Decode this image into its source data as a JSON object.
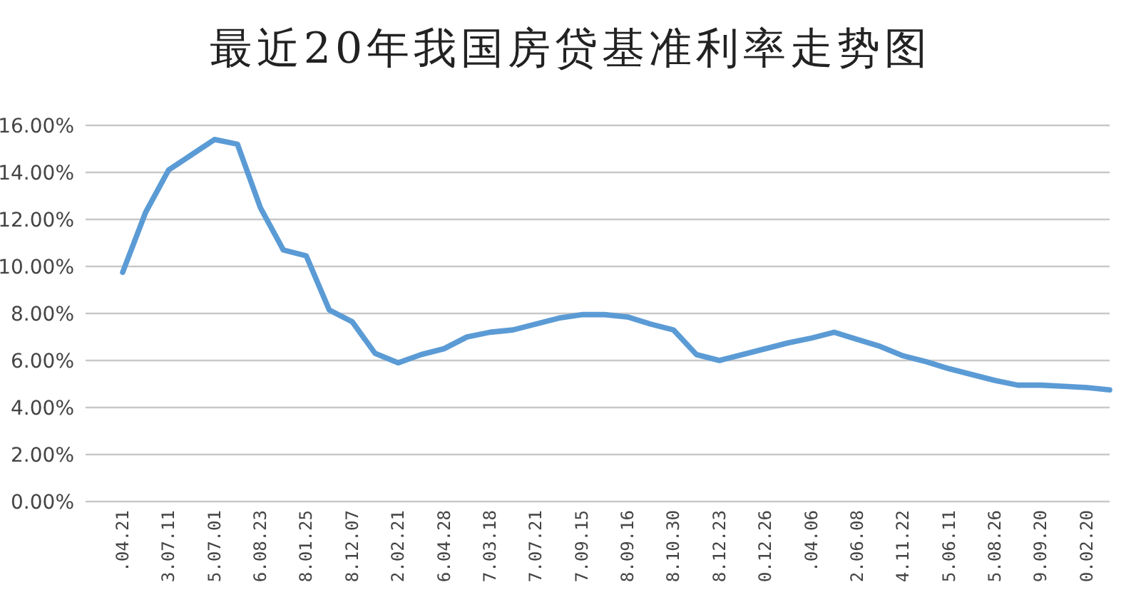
{
  "chart_data": {
    "type": "line",
    "title": "最近20年我国房贷基准利率走势图",
    "categories": [
      ".04.21",
      null,
      "3.07.11",
      null,
      "5.07.01",
      null,
      "6.08.23",
      null,
      "8.01.25",
      null,
      "8.12.07",
      null,
      "2.02.21",
      null,
      "6.04.28",
      null,
      "7.03.18",
      null,
      "7.07.21",
      null,
      "7.09.15",
      null,
      "8.09.16",
      null,
      "8.10.30",
      null,
      "8.12.23",
      null,
      "0.12.26",
      null,
      ".04.06",
      null,
      "2.06.08",
      null,
      "4.11.22",
      null,
      "5.06.11",
      null,
      "5.08.26",
      null,
      "9.09.20",
      null,
      "0.02.20",
      null
    ],
    "values": [
      9.75,
      12.3,
      14.1,
      14.75,
      15.4,
      15.2,
      12.5,
      10.7,
      10.45,
      8.15,
      7.65,
      6.3,
      5.9,
      6.25,
      6.5,
      7.0,
      7.2,
      7.3,
      7.55,
      7.8,
      7.95,
      7.95,
      7.85,
      7.55,
      7.3,
      6.25,
      6.0,
      6.25,
      6.5,
      6.75,
      6.95,
      7.2,
      6.9,
      6.6,
      6.2,
      5.95,
      5.65,
      5.4,
      5.15,
      4.95,
      4.95,
      4.9,
      4.85,
      4.75
    ],
    "color": "#5b9bd5",
    "ylim": [
      0,
      16
    ],
    "yticks": [
      {
        "value": 0,
        "label": "0.00%"
      },
      {
        "value": 2,
        "label": "2.00%"
      },
      {
        "value": 4,
        "label": "4.00%"
      },
      {
        "value": 6,
        "label": "6.00%"
      },
      {
        "value": 8,
        "label": "8.00%"
      },
      {
        "value": 10,
        "label": "10.00%"
      },
      {
        "value": 12,
        "label": "12.00%"
      },
      {
        "value": 14,
        "label": "14.00%"
      },
      {
        "value": 16,
        "label": "16.00%"
      }
    ],
    "grid": "y"
  }
}
